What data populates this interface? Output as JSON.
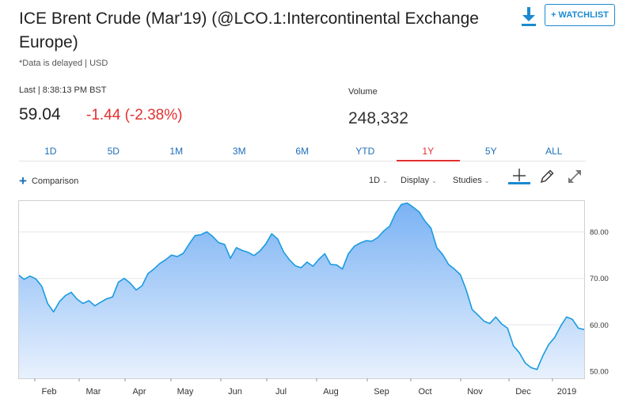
{
  "header": {
    "title": "ICE Brent Crude (Mar'19) (@LCO.1:Intercontinental Exchange Europe)",
    "subtitle": "*Data is delayed | USD",
    "download_icon": "download-icon",
    "watchlist_label": "+ WATCHLIST"
  },
  "quote": {
    "last_label": "Last | 8:38:13 PM BST",
    "last_price": "59.04",
    "change": "-1.44 (-2.38%)",
    "volume_label": "Volume",
    "volume_value": "248,332",
    "change_color": "#e2302f"
  },
  "range_tabs": {
    "items": [
      "1D",
      "5D",
      "1M",
      "3M",
      "6M",
      "YTD",
      "1Y",
      "5Y",
      "ALL"
    ],
    "active": "1Y"
  },
  "toolbar": {
    "comparison_label": "Comparison",
    "interval_label": "1D",
    "display_label": "Display",
    "studies_label": "Studies",
    "icons": [
      "crosshair-icon",
      "pencil-icon",
      "expand-icon"
    ]
  },
  "chart_data": {
    "type": "area",
    "y_ticks": [
      "80.00",
      "70.00",
      "60.00",
      "50.00"
    ],
    "ylim": [
      48.5,
      86.8
    ],
    "x_ticks": [
      "Feb",
      "Mar",
      "Apr",
      "May",
      "Jun",
      "Jul",
      "Aug",
      "Sep",
      "Oct",
      "Nov",
      "Dec",
      "2019"
    ],
    "grid": true,
    "line_color": "#1a9be0",
    "values": [
      70.8,
      69.8,
      70.5,
      69.9,
      68.3,
      64.6,
      62.8,
      65.0,
      66.3,
      67.0,
      65.5,
      64.6,
      65.2,
      64.1,
      64.9,
      65.6,
      66.0,
      69.2,
      70.0,
      69.0,
      67.5,
      68.4,
      71.0,
      72.0,
      73.2,
      74.0,
      75.0,
      74.7,
      75.4,
      77.4,
      79.2,
      79.4,
      80.0,
      79.0,
      77.7,
      77.3,
      74.3,
      76.6,
      76.0,
      75.6,
      74.9,
      75.9,
      77.4,
      79.6,
      78.5,
      75.7,
      74.0,
      72.7,
      72.3,
      73.5,
      72.6,
      74.1,
      75.3,
      73.0,
      72.9,
      72.0,
      75.3,
      76.9,
      77.6,
      78.1,
      78.0,
      78.8,
      80.2,
      81.2,
      84.0,
      85.9,
      86.2,
      85.3,
      84.3,
      82.3,
      80.8,
      76.6,
      75.1,
      73.0,
      72.0,
      70.8,
      67.5,
      63.3,
      62.1,
      60.8,
      60.3,
      61.7,
      60.2,
      59.3,
      55.5,
      54.0,
      51.8,
      50.8,
      50.4,
      53.4,
      55.8,
      57.3,
      59.7,
      61.7,
      61.2,
      59.3,
      59.0
    ]
  }
}
